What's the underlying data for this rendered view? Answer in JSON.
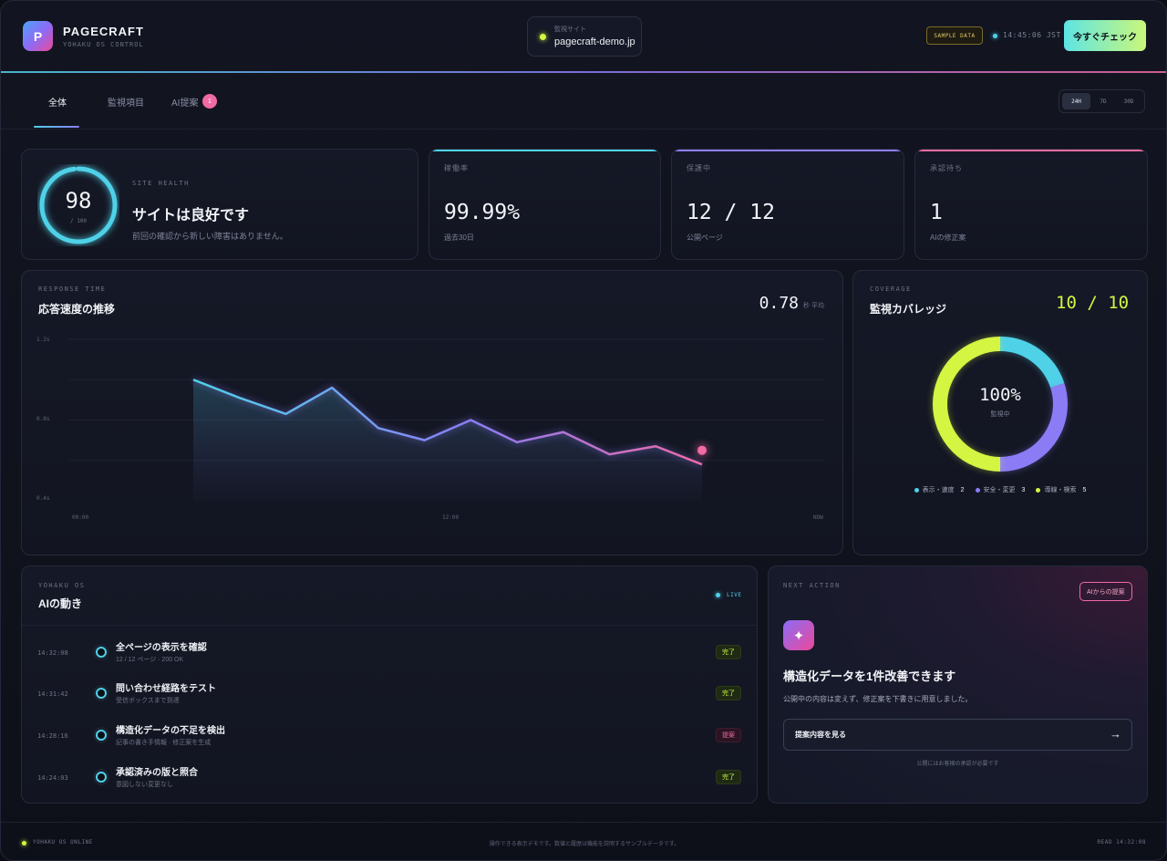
{
  "brand": {
    "logo_letter": "P",
    "name": "PAGECRAFT",
    "sub": "YOHAKU OS CONTROL"
  },
  "site": {
    "label": "監視サイト",
    "domain": "pagecraft-demo.jp",
    "status_color": "#d4f542"
  },
  "header": {
    "sample_badge": "SAMPLE DATA",
    "clock": "14:45:06 JST",
    "check_button": "今すぐチェック"
  },
  "tabs": [
    {
      "label": "全体",
      "active": true
    },
    {
      "label": "監視項目",
      "active": false
    },
    {
      "label": "AI提案",
      "active": false,
      "badge": "1"
    }
  ],
  "ranges": [
    {
      "label": "24H",
      "active": true
    },
    {
      "label": "7D",
      "active": false
    },
    {
      "label": "30D",
      "active": false
    }
  ],
  "health": {
    "eyebrow": "SITE HEALTH",
    "score": "98",
    "max": "/ 100",
    "score_fraction": 0.98,
    "title": "サイトは良好です",
    "desc": "前回の確認から新しい障害はありません。"
  },
  "stats": [
    {
      "label": "稼働率",
      "value": "99.99%",
      "sub": "過去30日",
      "accent": "#4fd1e8"
    },
    {
      "label": "保護中",
      "value": "12 / 12",
      "sub": "公開ページ",
      "accent": "#8b7cf6"
    },
    {
      "label": "承認待ち",
      "value": "1",
      "sub": "AIの修正案",
      "accent": "#f06aa4"
    }
  ],
  "response": {
    "eyebrow": "RESPONSE TIME",
    "title": "応答速度の推移",
    "avg_value": "0.78",
    "avg_unit": "秒 平均",
    "y_ticks": [
      "1.2s",
      "0.8s",
      "0.4s"
    ],
    "x_ticks": [
      "00:00",
      "12:00",
      "NOW"
    ]
  },
  "chart_data": {
    "type": "area",
    "x": [
      0,
      1,
      2,
      3,
      4,
      5,
      6,
      7,
      8,
      9,
      10,
      11
    ],
    "values": [
      1.0,
      0.91,
      0.83,
      0.96,
      0.76,
      0.7,
      0.8,
      0.69,
      0.74,
      0.63,
      0.67,
      0.58
    ],
    "ylim": [
      0.4,
      1.2
    ],
    "y_gridlines": [
      1.2,
      1.0,
      0.8,
      0.6
    ],
    "gradient": [
      "#4fd1e8",
      "#8b7cf6",
      "#f06aa4"
    ],
    "last_point_color": "#f06aa4"
  },
  "coverage": {
    "eyebrow": "COVERAGE",
    "title": "監視カバレッジ",
    "value": "10 / 10",
    "center": "100%",
    "center_sub": "監視中",
    "segments": [
      {
        "label": "表示・速度",
        "count": 2,
        "color": "#4fd1e8"
      },
      {
        "label": "安全・変更",
        "count": 3,
        "color": "#8b7cf6"
      },
      {
        "label": "導線・検索",
        "count": 5,
        "color": "#d4f542"
      }
    ]
  },
  "activity": {
    "eyebrow": "YOHAKU OS",
    "title": "AIの動き",
    "live": "LIVE",
    "items": [
      {
        "time": "14:32:08",
        "title": "全ページの表示を確認",
        "sub": "12 / 12 ページ · 200 OK",
        "status": "完了",
        "kind": "done"
      },
      {
        "time": "14:31:42",
        "title": "問い合わせ経路をテスト",
        "sub": "受信ボックスまで到達",
        "status": "完了",
        "kind": "done"
      },
      {
        "time": "14:28:16",
        "title": "構造化データの不足を検出",
        "sub": "記事の書き手情報 · 修正案を生成",
        "status": "提案",
        "kind": "proposal"
      },
      {
        "time": "14:24:03",
        "title": "承認済みの版と照合",
        "sub": "意図しない変更なし",
        "status": "完了",
        "kind": "done"
      }
    ]
  },
  "next_action": {
    "eyebrow": "NEXT ACTION",
    "tag": "AIからの提案",
    "icon": "sparkle-icon",
    "title": "構造化データを1件改善できます",
    "desc": "公開中の内容は変えず、修正案を下書きに用意しました。",
    "button": "提案内容を見る",
    "note": "公開にはお客様の承認が必要です"
  },
  "footer": {
    "left": "YOHAKU OS ONLINE",
    "mid": "操作できる表示デモです。数値と履歴は機能を説明するサンプルデータです。",
    "right": "READ 14:32:08"
  }
}
